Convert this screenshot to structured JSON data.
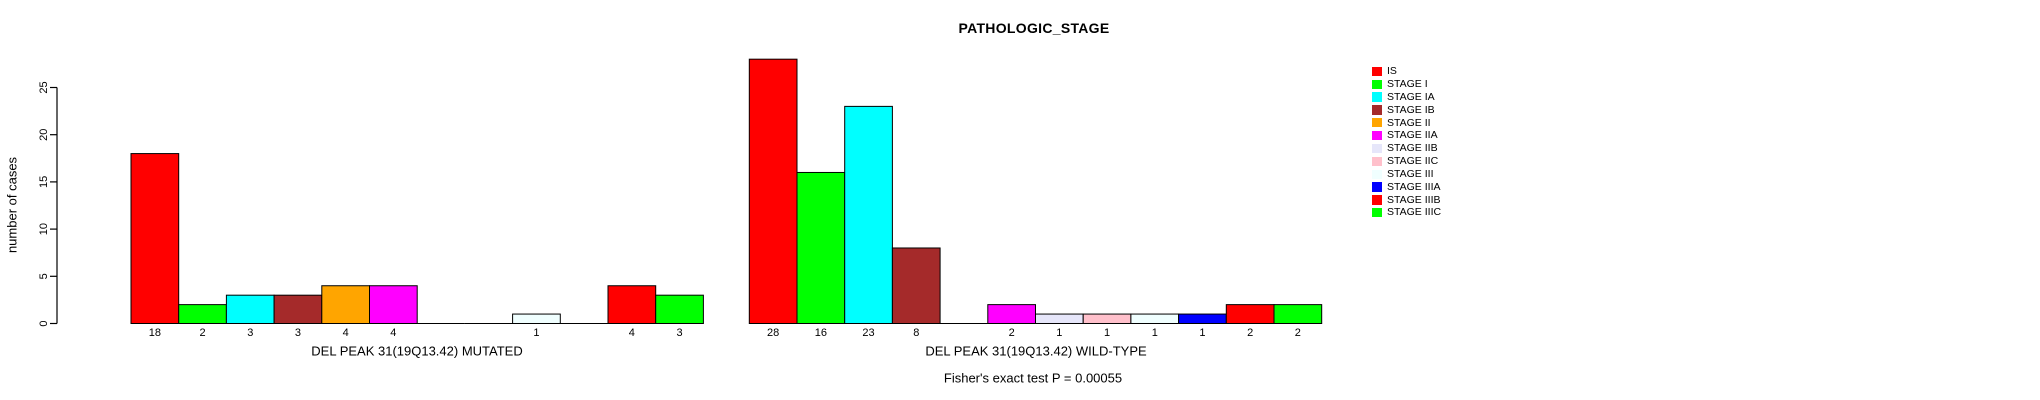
{
  "chart_data": {
    "type": "bar",
    "title": "PATHOLOGIC_STAGE",
    "ylabel": "number of cases",
    "yticks": [
      0,
      5,
      10,
      15,
      20,
      25
    ],
    "ylim": [
      0,
      28
    ],
    "grid": false,
    "legend_position": "right",
    "categories": [
      "IS",
      "STAGE I",
      "STAGE IA",
      "STAGE IB",
      "STAGE II",
      "STAGE IIA",
      "STAGE IIB",
      "STAGE IIC",
      "STAGE III",
      "STAGE IIIA",
      "STAGE IIIB",
      "STAGE IIIC"
    ],
    "legend": [
      {
        "label": "IS",
        "color": "#FF0000"
      },
      {
        "label": "STAGE I",
        "color": "#00FF00"
      },
      {
        "label": "STAGE IA",
        "color": "#00FFFF"
      },
      {
        "label": "STAGE IB",
        "color": "#A52A2A"
      },
      {
        "label": "STAGE II",
        "color": "#FFA500"
      },
      {
        "label": "STAGE IIA",
        "color": "#FF00FF"
      },
      {
        "label": "STAGE IIB",
        "color": "#E6E6FA"
      },
      {
        "label": "STAGE IIC",
        "color": "#FFC0CB"
      },
      {
        "label": "STAGE III",
        "color": "#F0FFFF"
      },
      {
        "label": "STAGE IIIA",
        "color": "#0000FF"
      },
      {
        "label": "STAGE IIIB",
        "color": "#FF0000"
      },
      {
        "label": "STAGE IIIC",
        "color": "#00FF00"
      }
    ],
    "groups": [
      {
        "label": "DEL PEAK 31(19Q13.42) MUTATED",
        "values": [
          18,
          2,
          3,
          3,
          4,
          4,
          0,
          0,
          1,
          0,
          4,
          3
        ]
      },
      {
        "label": "DEL PEAK 31(19Q13.42) WILD-TYPE",
        "values": [
          28,
          16,
          23,
          8,
          0,
          2,
          1,
          1,
          1,
          1,
          2,
          2
        ]
      }
    ],
    "annotation": "Fisher's exact test P = 0.00055",
    "bar_border_color": "#000000",
    "background_color": "#FFFFFF"
  }
}
